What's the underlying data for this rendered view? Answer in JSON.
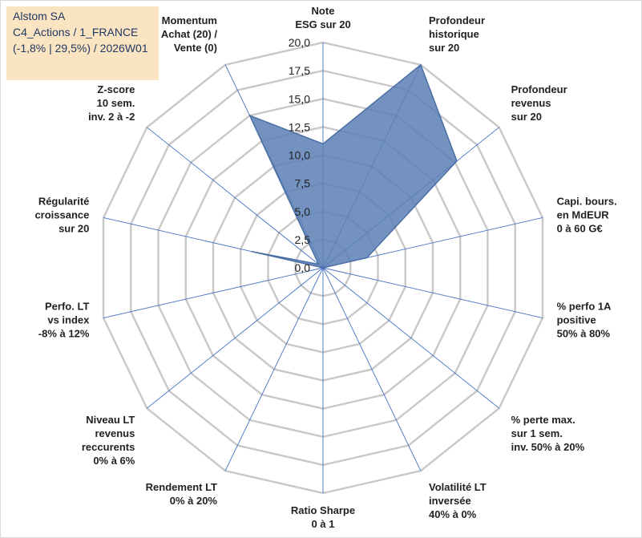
{
  "title_box": {
    "line1": "Alstom SA",
    "line2": "C4_Actions / 1_FRANCE",
    "line3": "(-1,8% | 29,5%) / 2026W01"
  },
  "colors": {
    "fill": "#5b7fb5",
    "stroke": "#4a6fa5",
    "spoke": "#4472c4",
    "ring": "#c8c8c8",
    "title_bg": "#fbe4c2"
  },
  "chart_data": {
    "type": "radar",
    "rmin": 0,
    "rmax": 20,
    "ticks": [
      "0,0",
      "2,5",
      "5,0",
      "7,5",
      "10,0",
      "12,5",
      "15,0",
      "17,5",
      "20,0"
    ],
    "tick_values": [
      0,
      2.5,
      5,
      7.5,
      10,
      12.5,
      15,
      17.5,
      20
    ],
    "axes": [
      {
        "label": [
          "Note",
          "ESG sur 20"
        ],
        "value": 11.0
      },
      {
        "label": [
          "Profondeur",
          "historique",
          "sur 20"
        ],
        "value": 20.0
      },
      {
        "label": [
          "Profondeur",
          "revenus",
          "sur 20"
        ],
        "value": 15.2
      },
      {
        "label": [
          "Capi. bours.",
          "en MdEUR",
          "0 à 60 G€"
        ],
        "value": 4.0
      },
      {
        "label": [
          "% perfo 1A",
          "positive",
          "50% à 80%"
        ],
        "value": 0.0
      },
      {
        "label": [
          "% perte max.",
          "sur 1 sem.",
          "inv. 50% à 20%"
        ],
        "value": 0.0
      },
      {
        "label": [
          "Volatilité LT",
          "inversée",
          "40% à 0%"
        ],
        "value": 0.0
      },
      {
        "label": [
          "Ratio Sharpe",
          "0 à 1"
        ],
        "value": 0.0
      },
      {
        "label": [
          "Rendement LT",
          "0% à 20%"
        ],
        "value": 0.0
      },
      {
        "label": [
          "Niveau LT",
          "revenus",
          "reccurents",
          "0% à 6%"
        ],
        "value": 0.0
      },
      {
        "label": [
          "Perfo. LT",
          "vs index",
          "-8% à 12%"
        ],
        "value": 0.0
      },
      {
        "label": [
          "Régularité",
          "croissance",
          "sur 20"
        ],
        "value": 6.5
      },
      {
        "label": [
          "Z-score",
          "10 sem.",
          "inv. 2 à -2"
        ],
        "value": 0.5
      },
      {
        "label": [
          "Momentum",
          "Achat (20) /",
          "Vente (0)"
        ],
        "value": 15.0
      }
    ]
  }
}
